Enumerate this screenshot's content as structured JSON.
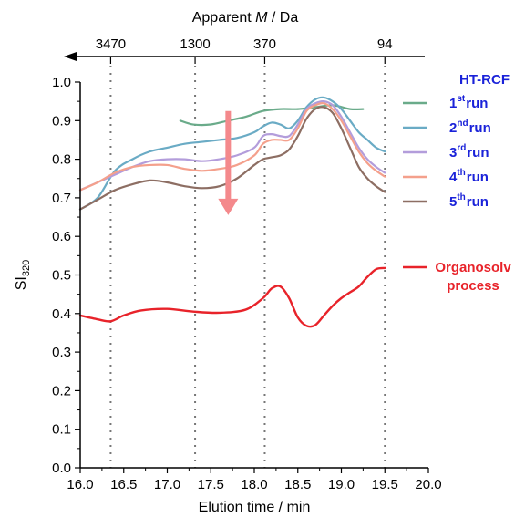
{
  "chart_data": {
    "type": "line",
    "xlabel": "Elution time / min",
    "ylabel_main": "SI",
    "ylabel_sub": "320",
    "top_axis_label_prefix": "Apparent ",
    "top_axis_label_italic": "M",
    "top_axis_label_suffix": " / Da",
    "xlim": [
      16.0,
      20.0
    ],
    "ylim": [
      0.0,
      1.0
    ],
    "x_ticks": [
      "16.0",
      "16.5",
      "17.0",
      "17.5",
      "18.0",
      "18.5",
      "19.0",
      "19.5",
      "20.0"
    ],
    "y_ticks": [
      "0.0",
      "0.1",
      "0.2",
      "0.3",
      "0.4",
      "0.5",
      "0.6",
      "0.7",
      "0.8",
      "0.9",
      "1.0"
    ],
    "top_ticks": [
      {
        "label": "3470",
        "x": 16.35
      },
      {
        "label": "1300",
        "x": 17.32
      },
      {
        "label": "370",
        "x": 18.12
      },
      {
        "label": "94",
        "x": 19.5
      }
    ],
    "legend_group_title": "HT-RCF",
    "series": [
      {
        "name_base": "1",
        "name_sup": "st",
        "name_suffix": "run",
        "color": "#6aab8a",
        "x": [
          17.15,
          17.3,
          17.5,
          17.7,
          17.9,
          18.1,
          18.3,
          18.5,
          18.7,
          18.9,
          19.1,
          19.25
        ],
        "y": [
          0.9,
          0.89,
          0.89,
          0.9,
          0.91,
          0.925,
          0.93,
          0.93,
          0.935,
          0.94,
          0.93,
          0.93
        ]
      },
      {
        "name_base": "2",
        "name_sup": "nd",
        "name_suffix": "run",
        "color": "#6aabc5",
        "x": [
          16.0,
          16.2,
          16.4,
          16.6,
          16.8,
          17.0,
          17.2,
          17.4,
          17.6,
          17.8,
          18.0,
          18.1,
          18.2,
          18.3,
          18.4,
          18.5,
          18.6,
          18.7,
          18.8,
          18.9,
          19.0,
          19.1,
          19.2,
          19.3,
          19.4,
          19.5
        ],
        "y": [
          0.67,
          0.7,
          0.77,
          0.8,
          0.82,
          0.83,
          0.84,
          0.845,
          0.85,
          0.855,
          0.87,
          0.885,
          0.895,
          0.89,
          0.88,
          0.9,
          0.935,
          0.955,
          0.96,
          0.95,
          0.93,
          0.9,
          0.87,
          0.85,
          0.83,
          0.82
        ]
      },
      {
        "name_base": "3",
        "name_sup": "rd",
        "name_suffix": "run",
        "color": "#b39ddb",
        "x": [
          16.0,
          16.2,
          16.4,
          16.6,
          16.8,
          17.0,
          17.2,
          17.4,
          17.6,
          17.8,
          18.0,
          18.1,
          18.2,
          18.3,
          18.4,
          18.5,
          18.6,
          18.7,
          18.8,
          18.9,
          19.0,
          19.1,
          19.2,
          19.3,
          19.4,
          19.5
        ],
        "y": [
          0.72,
          0.74,
          0.76,
          0.78,
          0.795,
          0.8,
          0.8,
          0.795,
          0.8,
          0.81,
          0.83,
          0.86,
          0.865,
          0.86,
          0.86,
          0.89,
          0.93,
          0.945,
          0.95,
          0.94,
          0.91,
          0.87,
          0.83,
          0.8,
          0.78,
          0.765
        ]
      },
      {
        "name_base": "4",
        "name_sup": "th",
        "name_suffix": "run",
        "color": "#f4a08c",
        "x": [
          16.0,
          16.2,
          16.4,
          16.6,
          16.8,
          17.0,
          17.2,
          17.4,
          17.6,
          17.8,
          18.0,
          18.1,
          18.2,
          18.3,
          18.4,
          18.5,
          18.6,
          18.7,
          18.8,
          18.9,
          19.0,
          19.1,
          19.2,
          19.3,
          19.4,
          19.5
        ],
        "y": [
          0.72,
          0.74,
          0.765,
          0.78,
          0.785,
          0.785,
          0.775,
          0.77,
          0.775,
          0.785,
          0.81,
          0.84,
          0.85,
          0.85,
          0.85,
          0.88,
          0.925,
          0.94,
          0.945,
          0.93,
          0.9,
          0.86,
          0.82,
          0.79,
          0.77,
          0.755
        ]
      },
      {
        "name_base": "5",
        "name_sup": "th",
        "name_suffix": "run",
        "color": "#8d6e63",
        "x": [
          16.0,
          16.2,
          16.4,
          16.6,
          16.8,
          17.0,
          17.2,
          17.4,
          17.6,
          17.8,
          18.0,
          18.1,
          18.2,
          18.3,
          18.4,
          18.5,
          18.6,
          18.7,
          18.8,
          18.9,
          19.0,
          19.1,
          19.2,
          19.3,
          19.4,
          19.5
        ],
        "y": [
          0.67,
          0.695,
          0.72,
          0.735,
          0.745,
          0.74,
          0.73,
          0.725,
          0.73,
          0.75,
          0.785,
          0.8,
          0.805,
          0.81,
          0.825,
          0.86,
          0.905,
          0.93,
          0.935,
          0.92,
          0.88,
          0.83,
          0.78,
          0.75,
          0.73,
          0.715
        ]
      },
      {
        "name_base": "Organosolv",
        "name_line2": "process",
        "color": "#e8232a",
        "x": [
          16.0,
          16.2,
          16.35,
          16.5,
          16.7,
          17.0,
          17.3,
          17.6,
          17.9,
          18.1,
          18.2,
          18.3,
          18.4,
          18.5,
          18.6,
          18.7,
          18.8,
          18.9,
          19.0,
          19.1,
          19.2,
          19.3,
          19.4,
          19.5
        ],
        "y": [
          0.395,
          0.385,
          0.38,
          0.395,
          0.408,
          0.412,
          0.405,
          0.402,
          0.41,
          0.44,
          0.465,
          0.47,
          0.44,
          0.39,
          0.368,
          0.37,
          0.395,
          0.42,
          0.44,
          0.455,
          0.47,
          0.495,
          0.515,
          0.518
        ]
      }
    ],
    "arrow": {
      "x": 17.7,
      "y_start": 0.925,
      "y_end": 0.655,
      "color": "#f4898c",
      "direction": "down"
    },
    "legend_placement": "right",
    "grid": false
  }
}
